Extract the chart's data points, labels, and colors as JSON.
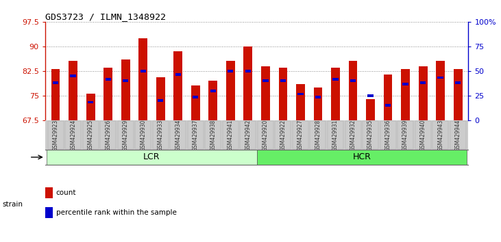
{
  "title": "GDS3723 / ILMN_1348922",
  "samples": [
    "GSM429923",
    "GSM429924",
    "GSM429925",
    "GSM429926",
    "GSM429929",
    "GSM429930",
    "GSM429933",
    "GSM429934",
    "GSM429937",
    "GSM429938",
    "GSM429941",
    "GSM429942",
    "GSM429920",
    "GSM429922",
    "GSM429927",
    "GSM429928",
    "GSM429931",
    "GSM429932",
    "GSM429935",
    "GSM429936",
    "GSM429939",
    "GSM429940",
    "GSM429943",
    "GSM429944"
  ],
  "red_values": [
    83.0,
    85.5,
    75.5,
    83.5,
    86.0,
    92.5,
    80.5,
    88.5,
    78.0,
    79.5,
    85.5,
    90.0,
    84.0,
    83.5,
    78.5,
    77.5,
    83.5,
    85.5,
    74.0,
    81.5,
    83.0,
    84.0,
    85.5,
    83.0
  ],
  "blue_values": [
    79.0,
    81.0,
    73.0,
    80.0,
    79.5,
    82.5,
    73.5,
    81.5,
    74.5,
    76.5,
    82.5,
    82.5,
    79.5,
    79.5,
    75.5,
    74.5,
    80.0,
    79.5,
    75.0,
    72.0,
    78.5,
    79.0,
    80.5,
    79.0
  ],
  "ylim": [
    67.5,
    97.5
  ],
  "yticks": [
    67.5,
    75.0,
    82.5,
    90.0,
    97.5
  ],
  "ytick_labels": [
    "67.5",
    "75",
    "82.5",
    "90",
    "97.5"
  ],
  "right_yticks": [
    0,
    25,
    50,
    75,
    100
  ],
  "right_ytick_labels": [
    "0",
    "25",
    "50",
    "75",
    "100%"
  ],
  "groups": [
    {
      "label": "LCR",
      "start": 0,
      "end": 11,
      "color": "#ccffcc"
    },
    {
      "label": "HCR",
      "start": 12,
      "end": 23,
      "color": "#66ee66"
    }
  ],
  "bar_color": "#cc1100",
  "blue_color": "#0000cc",
  "grid_color": "#555555",
  "yaxis_color": "#cc1100",
  "right_yaxis_color": "#0000cc",
  "bar_bottom": 67.5,
  "legend_items": [
    {
      "label": "count",
      "color": "#cc1100"
    },
    {
      "label": "percentile rank within the sample",
      "color": "#0000cc"
    }
  ]
}
